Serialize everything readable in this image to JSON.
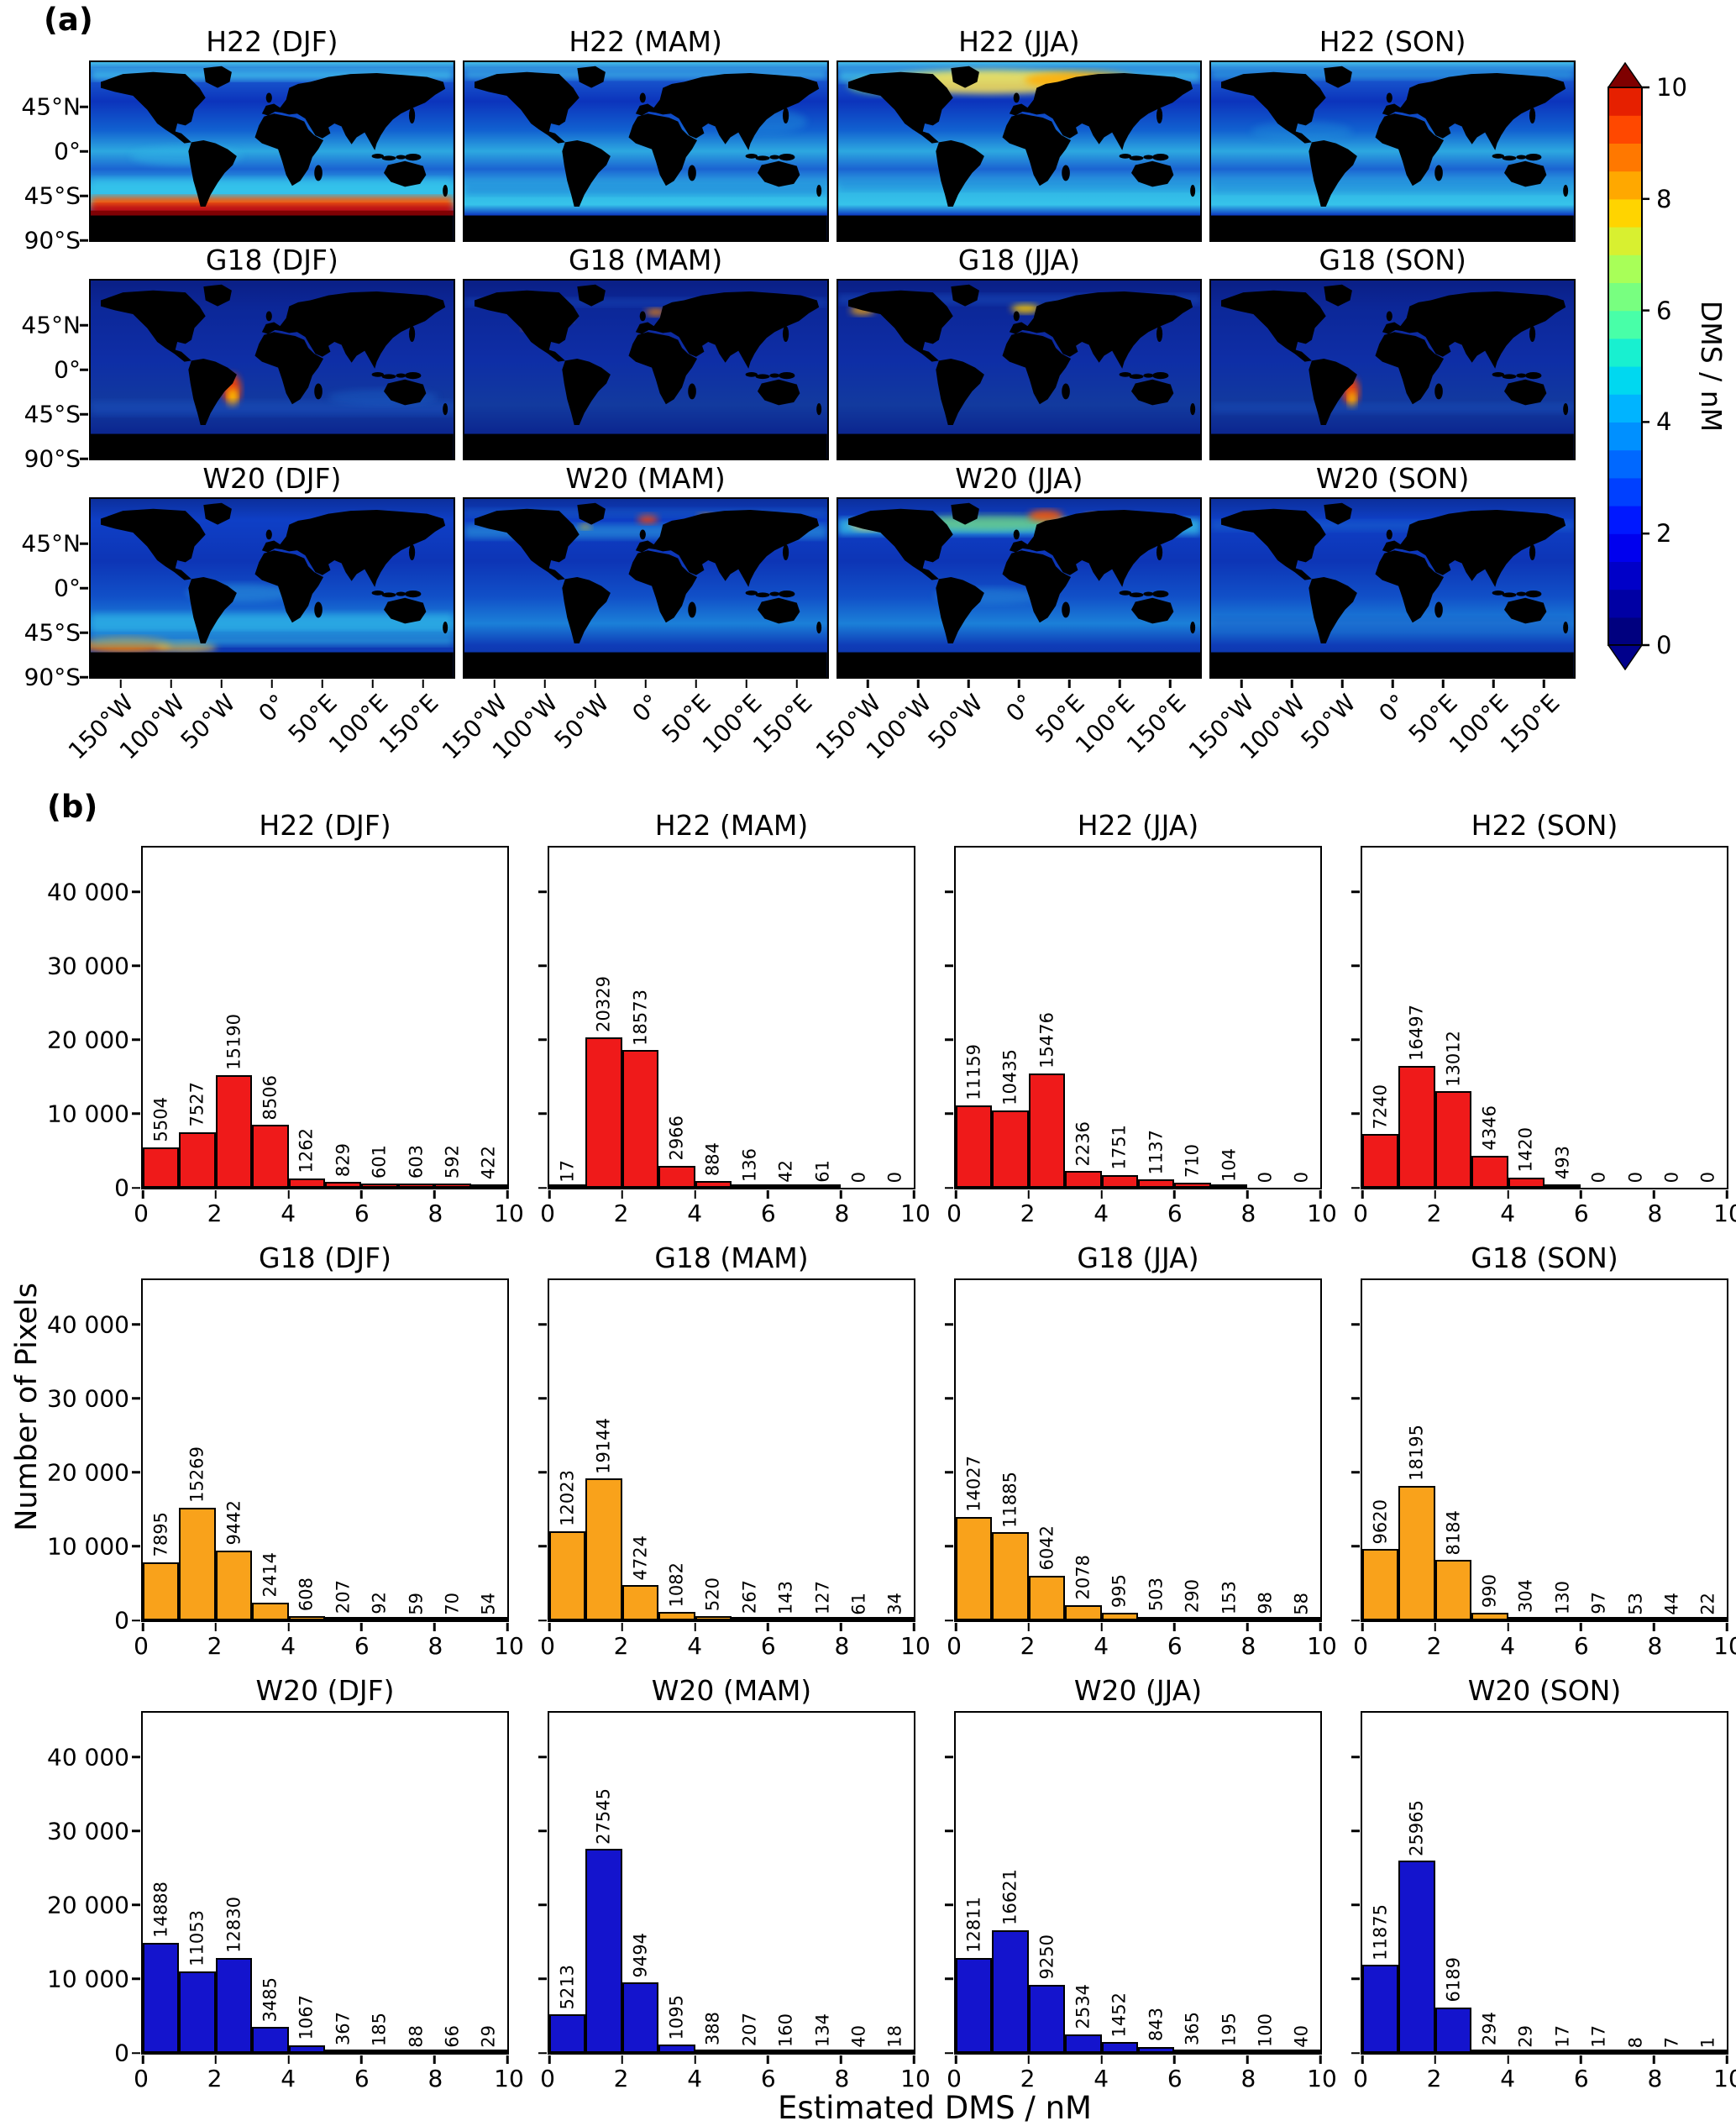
{
  "figure": {
    "panel_a_label": "(a)",
    "panel_b_label": "(b)"
  },
  "colorbar": {
    "label": "DMS / nM",
    "tick_labels": [
      "0",
      "2",
      "4",
      "6",
      "8",
      "10"
    ]
  },
  "maps": {
    "row_titles": [
      [
        "H22 (DJF)",
        "H22 (MAM)",
        "H22 (JJA)",
        "H22 (SON)"
      ],
      [
        "G18 (DJF)",
        "G18 (MAM)",
        "G18 (JJA)",
        "G18 (SON)"
      ],
      [
        "W20 (DJF)",
        "W20 (MAM)",
        "W20 (JJA)",
        "W20 (SON)"
      ]
    ],
    "ytick_labels": [
      "45°N",
      "0°",
      "45°S",
      "90°S"
    ],
    "xtick_labels": [
      "150°W",
      "100°W",
      "50°W",
      "0°",
      "50°E",
      "100°E",
      "150°E"
    ]
  },
  "histograms": {
    "ytick_labels": [
      "0",
      "10 000",
      "20 000",
      "30 000",
      "40 000"
    ],
    "xtick_labels": [
      "0",
      "2",
      "4",
      "6",
      "8",
      "10"
    ]
  },
  "chart_data": {
    "type": "bar",
    "xlabel": "Estimated DMS / nM",
    "ylabel": "Number of Pixels",
    "x_bin_edges": [
      0,
      1,
      2,
      3,
      4,
      5,
      6,
      7,
      8,
      9,
      10
    ],
    "ylim": [
      0,
      46000
    ],
    "yticks": [
      0,
      10000,
      20000,
      30000,
      40000
    ],
    "xticks": [
      0,
      2,
      4,
      6,
      8,
      10
    ],
    "colors": {
      "H22": "#ef1a1a",
      "G18": "#f9a21b",
      "W20": "#1414cd"
    },
    "series": [
      {
        "name": "H22 (DJF)",
        "color": "#ef1a1a",
        "values": [
          5504,
          7527,
          15190,
          8506,
          1262,
          829,
          601,
          603,
          592,
          422
        ]
      },
      {
        "name": "H22 (MAM)",
        "color": "#ef1a1a",
        "values": [
          17,
          20329,
          18573,
          2966,
          884,
          136,
          42,
          61,
          0,
          0
        ]
      },
      {
        "name": "H22 (JJA)",
        "color": "#ef1a1a",
        "values": [
          11159,
          10435,
          15476,
          2236,
          1751,
          1137,
          710,
          104,
          0,
          0
        ]
      },
      {
        "name": "H22 (SON)",
        "color": "#ef1a1a",
        "values": [
          7240,
          16497,
          13012,
          4346,
          1420,
          493,
          0,
          0,
          0,
          0
        ]
      },
      {
        "name": "G18 (DJF)",
        "color": "#f9a21b",
        "values": [
          7895,
          15269,
          9442,
          2414,
          608,
          207,
          92,
          59,
          70,
          54
        ]
      },
      {
        "name": "G18 (MAM)",
        "color": "#f9a21b",
        "values": [
          12023,
          19144,
          4724,
          1082,
          520,
          267,
          143,
          127,
          61,
          34
        ]
      },
      {
        "name": "G18 (JJA)",
        "color": "#f9a21b",
        "values": [
          14027,
          11885,
          6042,
          2078,
          995,
          503,
          290,
          153,
          98,
          58
        ]
      },
      {
        "name": "G18 (SON)",
        "color": "#f9a21b",
        "values": [
          9620,
          18195,
          8184,
          990,
          304,
          130,
          97,
          53,
          44,
          22
        ]
      },
      {
        "name": "W20 (DJF)",
        "color": "#1414cd",
        "values": [
          14888,
          11053,
          12830,
          3485,
          1067,
          367,
          185,
          88,
          66,
          29
        ]
      },
      {
        "name": "W20 (MAM)",
        "color": "#1414cd",
        "values": [
          5213,
          27545,
          9494,
          1095,
          388,
          207,
          160,
          134,
          40,
          18
        ]
      },
      {
        "name": "W20 (JJA)",
        "color": "#1414cd",
        "values": [
          12811,
          16621,
          9250,
          2534,
          1452,
          843,
          365,
          195,
          100,
          40
        ]
      },
      {
        "name": "W20 (SON)",
        "color": "#1414cd",
        "values": [
          11875,
          25965,
          6189,
          294,
          29,
          17,
          17,
          8,
          7,
          1
        ]
      }
    ]
  }
}
